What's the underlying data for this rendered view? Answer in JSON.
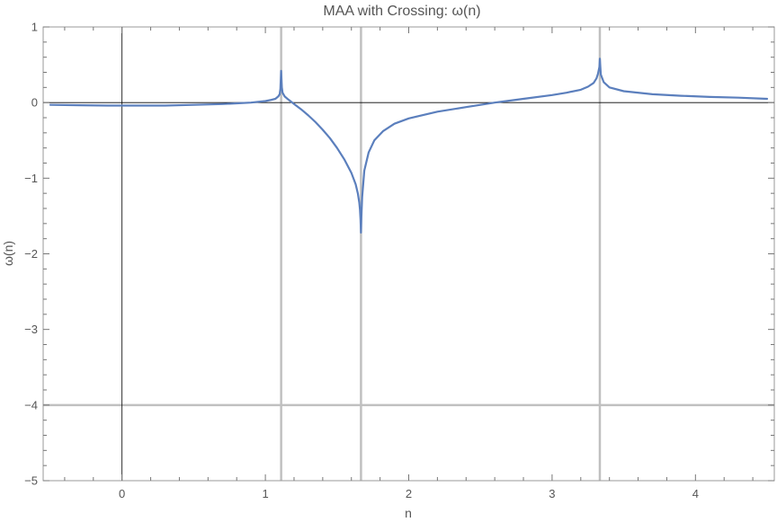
{
  "chart_data": {
    "type": "line",
    "title": "MAA with Crossing: ω(n)",
    "xlabel": "n",
    "ylabel": "ω(n)",
    "xlim": [
      -0.55,
      4.55
    ],
    "ylim": [
      -5,
      1
    ],
    "x_ticks": [
      0,
      1,
      2,
      3,
      4
    ],
    "y_ticks": [
      -5,
      -4,
      -3,
      -2,
      -1,
      0,
      1
    ],
    "x_tick_labels": [
      "0",
      "1",
      "2",
      "3",
      "4"
    ],
    "y_tick_labels": [
      "−5",
      "−4",
      "−3",
      "−2",
      "−1",
      "0",
      "1"
    ],
    "grid": false,
    "vertical_reference_lines": [
      1.11,
      1.667,
      3.333
    ],
    "horizontal_reference_lines": [
      -4
    ],
    "colors": {
      "series": "#5b7fbd",
      "reference": "#c0c0c0",
      "axis": "#000000",
      "frame": "#9a9a9a"
    },
    "series": [
      {
        "x": [
          -0.5,
          -0.3,
          -0.1,
          0.1,
          0.3,
          0.5,
          0.7,
          0.8,
          0.9,
          0.95,
          1.0,
          1.04,
          1.07,
          1.09,
          1.1,
          1.105,
          1.11,
          1.115,
          1.12,
          1.135,
          1.16,
          1.2,
          1.25,
          1.3,
          1.35,
          1.4,
          1.45,
          1.5,
          1.55,
          1.6,
          1.63,
          1.645,
          1.655,
          1.66,
          1.664,
          1.667,
          1.67,
          1.675,
          1.69,
          1.72,
          1.76,
          1.82,
          1.9,
          2.0,
          2.2,
          2.4,
          2.6,
          2.8,
          3.0,
          3.1,
          3.2,
          3.25,
          3.29,
          3.31,
          3.32,
          3.33,
          3.333,
          3.34,
          3.36,
          3.4,
          3.5,
          3.7,
          3.9,
          4.1,
          4.3,
          4.5
        ],
        "y": [
          -0.03,
          -0.035,
          -0.04,
          -0.04,
          -0.04,
          -0.03,
          -0.02,
          -0.01,
          0.0,
          0.01,
          0.02,
          0.035,
          0.05,
          0.08,
          0.11,
          0.18,
          0.42,
          0.2,
          0.13,
          0.08,
          0.04,
          -0.02,
          -0.09,
          -0.17,
          -0.26,
          -0.36,
          -0.47,
          -0.6,
          -0.75,
          -0.93,
          -1.08,
          -1.2,
          -1.32,
          -1.42,
          -1.55,
          -1.72,
          -1.5,
          -1.25,
          -0.9,
          -0.66,
          -0.5,
          -0.38,
          -0.28,
          -0.21,
          -0.12,
          -0.06,
          0.0,
          0.05,
          0.1,
          0.13,
          0.17,
          0.21,
          0.26,
          0.32,
          0.38,
          0.47,
          0.58,
          0.37,
          0.27,
          0.2,
          0.15,
          0.11,
          0.09,
          0.075,
          0.065,
          0.05
        ]
      }
    ]
  }
}
